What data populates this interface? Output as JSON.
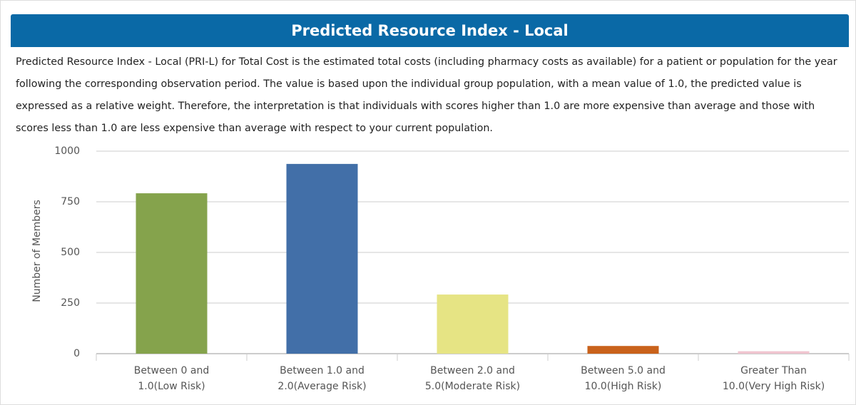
{
  "chart_data": {
    "type": "bar",
    "title": "Predicted Resource Index - Local",
    "subtitle": "Predicted Resource Index - Local (PRI-L) for Total Cost is the estimated total costs (including pharmacy costs as available) for a patient or population for the year following the corresponding observation period. The value is based upon the individual group population, with a mean value of 1.0, the predicted value is expressed as a relative weight. Therefore, the interpretation is that individuals with scores higher than 1.0 are more expensive than average and those with scores less than 1.0 are less expensive than average with respect to your current population.",
    "y_label": "Number of Members",
    "categories": [
      [
        "Between 0 and",
        "1.0(Low Risk)"
      ],
      [
        "Between 1.0 and",
        "2.0(Average Risk)"
      ],
      [
        "Between 2.0 and",
        "5.0(Moderate Risk)"
      ],
      [
        "Between 5.0 and",
        "10.0(High Risk)"
      ],
      [
        "Greater Than",
        "10.0(Very High Risk)"
      ]
    ],
    "values": [
      792,
      937,
      292,
      38,
      12
    ],
    "colors": [
      "#85a34c",
      "#426fa8",
      "#e6e484",
      "#c9621b",
      "#f0c4cf"
    ],
    "ylim": [
      0,
      1000
    ],
    "yticks": [
      0,
      250,
      500,
      750,
      1000
    ],
    "grid": true
  }
}
